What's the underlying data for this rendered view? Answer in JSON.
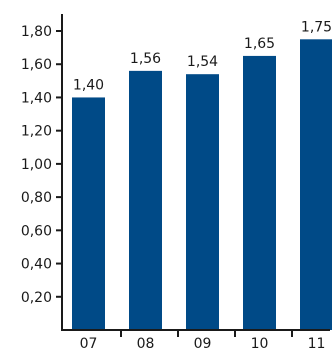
{
  "chart_data": {
    "type": "bar",
    "categories": [
      "07",
      "08",
      "09",
      "10",
      "11"
    ],
    "values": [
      1.4,
      1.56,
      1.54,
      1.65,
      1.75
    ],
    "data_labels": [
      "1,40",
      "1,56",
      "1,54",
      "1,65",
      "1,75"
    ],
    "y_ticks": [
      0.2,
      0.4,
      0.6,
      0.8,
      1.0,
      1.2,
      1.4,
      1.6,
      1.8
    ],
    "y_tick_labels": [
      "0,20",
      "0,40",
      "0,60",
      "0,80",
      "1,00",
      "1,20",
      "1,40",
      "1,60",
      "1,80"
    ],
    "ylim": [
      0,
      1.8
    ],
    "bar_color": "#004a87",
    "grid": false,
    "legend": "none",
    "title": "",
    "xlabel": "",
    "ylabel": ""
  }
}
